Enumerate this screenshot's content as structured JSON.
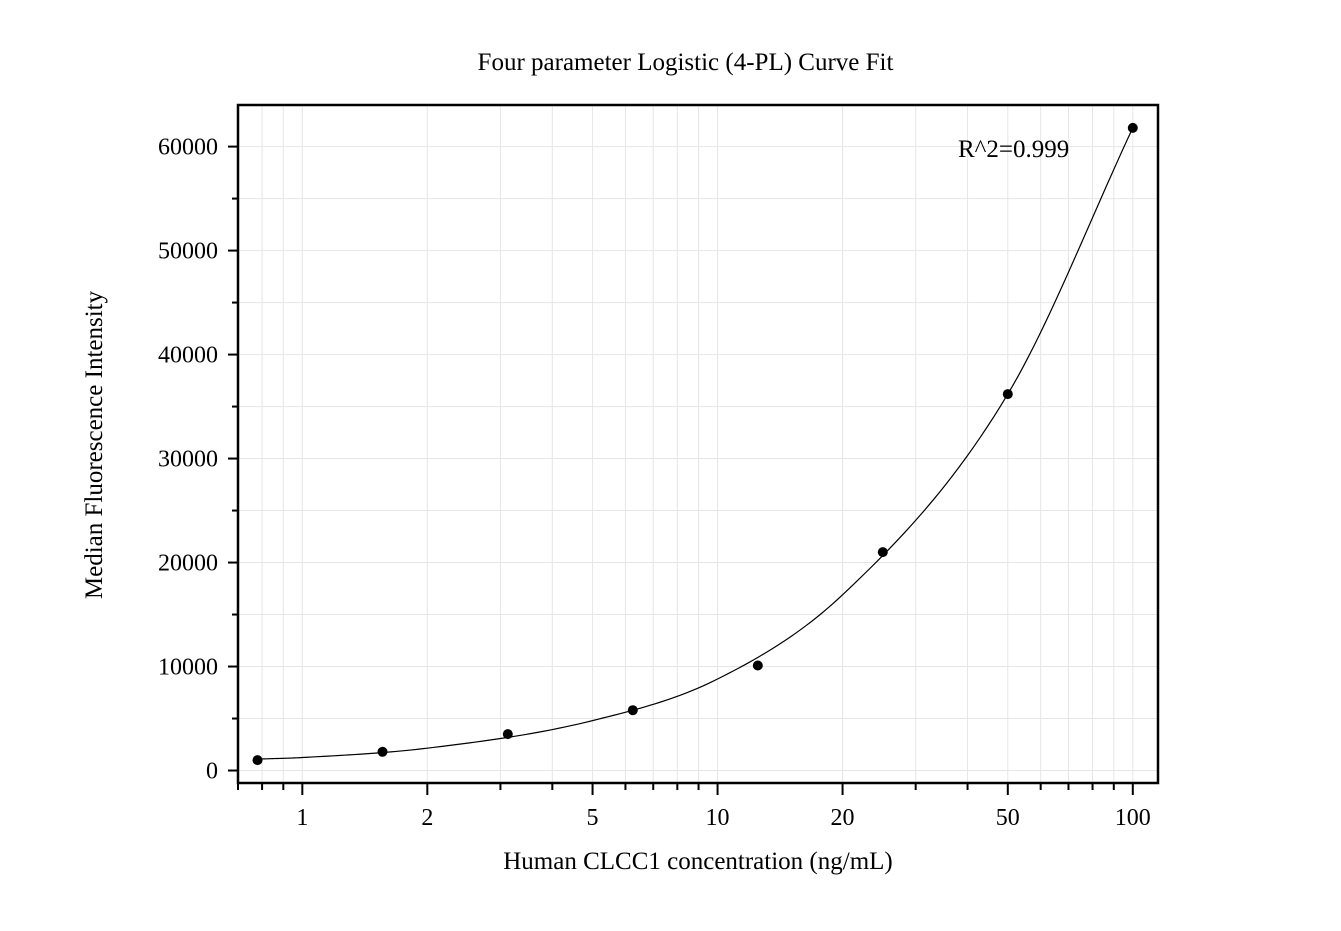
{
  "chart_data": {
    "type": "scatter",
    "title": "Four parameter Logistic (4-PL) Curve Fit",
    "xlabel": "Human CLCC1 concentration (ng/mL)",
    "ylabel": "Median Fluorescence Intensity",
    "xscale": "log",
    "xlim": [
      0.7,
      115
    ],
    "ylim": [
      -1200,
      64000
    ],
    "xticks": [
      1,
      2,
      5,
      10,
      20,
      50,
      100
    ],
    "yticks": [
      0,
      10000,
      20000,
      30000,
      40000,
      50000,
      60000
    ],
    "grid": true,
    "annotation": "R^2=0.999",
    "series": [
      {
        "kind": "points",
        "x": [
          0.78,
          1.56,
          3.125,
          6.25,
          12.5,
          25,
          50,
          100
        ],
        "y": [
          1000,
          1800,
          3500,
          5800,
          10100,
          21000,
          36200,
          61800
        ]
      },
      {
        "kind": "fit-curve",
        "x": [
          0.78,
          1,
          2,
          5,
          10,
          20,
          50,
          100
        ],
        "y": [
          1100,
          1250,
          2150,
          4800,
          8800,
          16900,
          36200,
          61800
        ]
      }
    ]
  }
}
